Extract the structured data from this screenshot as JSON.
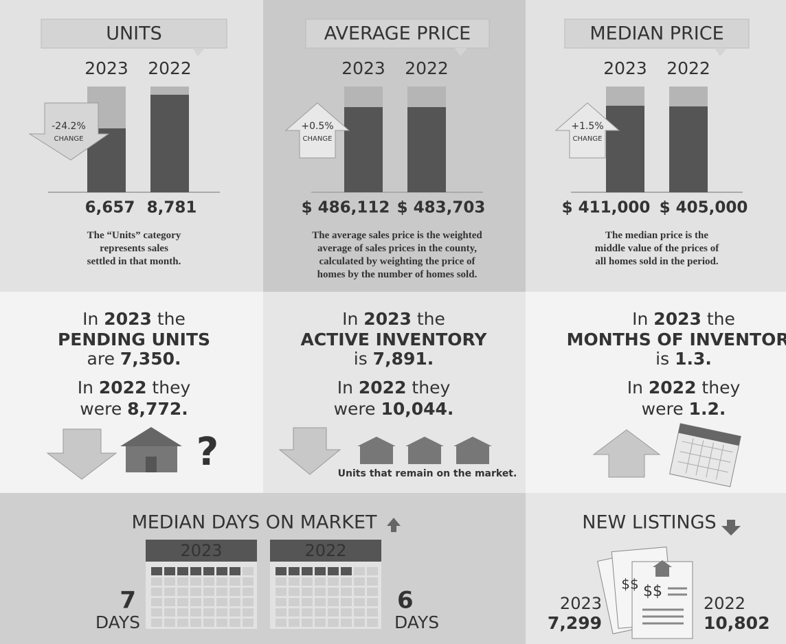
{
  "panels": [
    {
      "title": "UNITS",
      "years": [
        "2023",
        "2022"
      ],
      "change": "-24.2%",
      "change_label": "CHANGE",
      "values": [
        "6,657",
        "8,781"
      ],
      "note": [
        [
          {
            "t": "The “"
          },
          {
            "t": "Units",
            "b": true
          },
          {
            "t": "” category"
          }
        ],
        [
          {
            "t": "represents sales"
          }
        ],
        [
          {
            "t": "settled in that month."
          }
        ]
      ]
    },
    {
      "title": "AVERAGE PRICE",
      "years": [
        "2023",
        "2022"
      ],
      "change": "+0.5%",
      "change_label": "CHANGE",
      "values": [
        "$ 486,112",
        "$ 483,703"
      ],
      "note": [
        [
          {
            "t": "The "
          },
          {
            "t": "average",
            "b": true
          },
          {
            "t": " sales price is the weighted"
          }
        ],
        [
          {
            "t": "average of sales prices in the county,"
          }
        ],
        [
          {
            "t": "calculated by weighting the price of"
          }
        ],
        [
          {
            "t": "homes by the number of homes sold."
          }
        ]
      ]
    },
    {
      "title": "MEDIAN PRICE",
      "years": [
        "2023",
        "2022"
      ],
      "change": "+1.5%",
      "change_label": "CHANGE",
      "values": [
        "$ 411,000",
        "$ 405,000"
      ],
      "note": [
        [
          {
            "t": "The "
          },
          {
            "t": "median",
            "b": true
          },
          {
            "t": " price is the"
          }
        ],
        [
          {
            "t": "middle value of the prices of"
          }
        ],
        [
          {
            "t": "all homes sold in the period."
          }
        ]
      ]
    }
  ],
  "stats": [
    {
      "lines": [
        [
          {
            "t": "In "
          },
          {
            "t": "2023",
            "b": true
          },
          {
            "t": " the"
          }
        ],
        [
          {
            "t": "PENDING UNITS",
            "b": true
          }
        ],
        [
          {
            "t": "are "
          },
          {
            "t": "7,350.",
            "b": true
          }
        ],
        [
          {
            "t": "In "
          },
          {
            "t": "2022",
            "b": true
          },
          {
            "t": " they"
          }
        ],
        [
          {
            "t": "were "
          },
          {
            "t": "8,772.",
            "b": true
          }
        ]
      ]
    },
    {
      "lines": [
        [
          {
            "t": "In "
          },
          {
            "t": "2023",
            "b": true
          },
          {
            "t": " the"
          }
        ],
        [
          {
            "t": "ACTIVE INVENTORY",
            "b": true
          }
        ],
        [
          {
            "t": "is "
          },
          {
            "t": "7,891.",
            "b": true
          }
        ],
        [
          {
            "t": "In "
          },
          {
            "t": "2022",
            "b": true
          },
          {
            "t": " they"
          }
        ],
        [
          {
            "t": "were "
          },
          {
            "t": "10,044.",
            "b": true
          }
        ]
      ],
      "caption": "Units that remain on the market."
    },
    {
      "lines": [
        [
          {
            "t": "In "
          },
          {
            "t": "2023",
            "b": true
          },
          {
            "t": " the"
          }
        ],
        [
          {
            "t": "MONTHS OF INVENTORY",
            "b": true
          }
        ],
        [
          {
            "t": "is "
          },
          {
            "t": "1.3.",
            "b": true
          }
        ],
        [
          {
            "t": "In "
          },
          {
            "t": "2022",
            "b": true
          },
          {
            "t": " they"
          }
        ],
        [
          {
            "t": "were "
          },
          {
            "t": "1.2.",
            "b": true
          }
        ]
      ]
    }
  ],
  "days": {
    "title": "MEDIAN DAYS ON MARKET",
    "calendars": [
      {
        "year": "2023",
        "days": "7",
        "unit": "DAYS"
      },
      {
        "year": "2022",
        "days": "6",
        "unit": "DAYS"
      }
    ]
  },
  "listings": {
    "title": "NEW LISTINGS",
    "icon_text": [
      "$$",
      "$$"
    ],
    "items": [
      {
        "year": "2023",
        "value": "7,299"
      },
      {
        "year": "2022",
        "value": "10,802"
      }
    ]
  }
}
